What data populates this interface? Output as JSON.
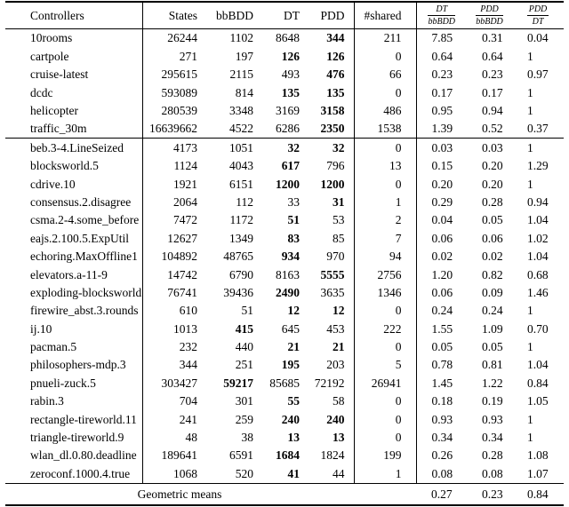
{
  "colors": {
    "text": "#000000",
    "background": "#ffffff",
    "rule": "#000000"
  },
  "table": {
    "columns": [
      "Controllers",
      "States",
      "bbBDD",
      "DT",
      "PDD",
      "#shared"
    ],
    "ratio_columns": [
      {
        "num": "DT",
        "den": "bbBDD"
      },
      {
        "num": "PDD",
        "den": "bbBDD"
      },
      {
        "num": "PDD",
        "den": "DT"
      }
    ],
    "groups": [
      {
        "rows": [
          {
            "controller": "10rooms",
            "states": "26244",
            "bbbdd": "1102",
            "dt": "8648",
            "pdd": "344",
            "shared": "211",
            "dt_bbbdd": "7.85",
            "pdd_bbbdd": "0.31",
            "pdd_dt": "0.04",
            "bold": [
              "pdd"
            ]
          },
          {
            "controller": "cartpole",
            "states": "271",
            "bbbdd": "197",
            "dt": "126",
            "pdd": "126",
            "shared": "0",
            "dt_bbbdd": "0.64",
            "pdd_bbbdd": "0.64",
            "pdd_dt": "1",
            "bold": [
              "dt",
              "pdd"
            ]
          },
          {
            "controller": "cruise-latest",
            "states": "295615",
            "bbbdd": "2115",
            "dt": "493",
            "pdd": "476",
            "shared": "66",
            "dt_bbbdd": "0.23",
            "pdd_bbbdd": "0.23",
            "pdd_dt": "0.97",
            "bold": [
              "pdd"
            ]
          },
          {
            "controller": "dcdc",
            "states": "593089",
            "bbbdd": "814",
            "dt": "135",
            "pdd": "135",
            "shared": "0",
            "dt_bbbdd": "0.17",
            "pdd_bbbdd": "0.17",
            "pdd_dt": "1",
            "bold": [
              "dt",
              "pdd"
            ]
          },
          {
            "controller": "helicopter",
            "states": "280539",
            "bbbdd": "3348",
            "dt": "3169",
            "pdd": "3158",
            "shared": "486",
            "dt_bbbdd": "0.95",
            "pdd_bbbdd": "0.94",
            "pdd_dt": "1",
            "bold": [
              "pdd"
            ]
          },
          {
            "controller": "traffic_30m",
            "states": "16639662",
            "bbbdd": "4522",
            "dt": "6286",
            "pdd": "2350",
            "shared": "1538",
            "dt_bbbdd": "1.39",
            "pdd_bbbdd": "0.52",
            "pdd_dt": "0.37",
            "bold": [
              "pdd"
            ]
          }
        ]
      },
      {
        "rows": [
          {
            "controller": "beb.3-4.LineSeized",
            "states": "4173",
            "bbbdd": "1051",
            "dt": "32",
            "pdd": "32",
            "shared": "0",
            "dt_bbbdd": "0.03",
            "pdd_bbbdd": "0.03",
            "pdd_dt": "1",
            "bold": [
              "dt",
              "pdd"
            ]
          },
          {
            "controller": "blocksworld.5",
            "states": "1124",
            "bbbdd": "4043",
            "dt": "617",
            "pdd": "796",
            "shared": "13",
            "dt_bbbdd": "0.15",
            "pdd_bbbdd": "0.20",
            "pdd_dt": "1.29",
            "bold": [
              "dt"
            ]
          },
          {
            "controller": "cdrive.10",
            "states": "1921",
            "bbbdd": "6151",
            "dt": "1200",
            "pdd": "1200",
            "shared": "0",
            "dt_bbbdd": "0.20",
            "pdd_bbbdd": "0.20",
            "pdd_dt": "1",
            "bold": [
              "dt",
              "pdd"
            ]
          },
          {
            "controller": "consensus.2.disagree",
            "states": "2064",
            "bbbdd": "112",
            "dt": "33",
            "pdd": "31",
            "shared": "1",
            "dt_bbbdd": "0.29",
            "pdd_bbbdd": "0.28",
            "pdd_dt": "0.94",
            "bold": [
              "pdd"
            ]
          },
          {
            "controller": "csma.2-4.some_before",
            "states": "7472",
            "bbbdd": "1172",
            "dt": "51",
            "pdd": "53",
            "shared": "2",
            "dt_bbbdd": "0.04",
            "pdd_bbbdd": "0.05",
            "pdd_dt": "1.04",
            "bold": [
              "dt"
            ]
          },
          {
            "controller": "eajs.2.100.5.ExpUtil",
            "states": "12627",
            "bbbdd": "1349",
            "dt": "83",
            "pdd": "85",
            "shared": "7",
            "dt_bbbdd": "0.06",
            "pdd_bbbdd": "0.06",
            "pdd_dt": "1.02",
            "bold": [
              "dt"
            ]
          },
          {
            "controller": "echoring.MaxOffline1",
            "states": "104892",
            "bbbdd": "48765",
            "dt": "934",
            "pdd": "970",
            "shared": "94",
            "dt_bbbdd": "0.02",
            "pdd_bbbdd": "0.02",
            "pdd_dt": "1.04",
            "bold": [
              "dt"
            ]
          },
          {
            "controller": "elevators.a-11-9",
            "states": "14742",
            "bbbdd": "6790",
            "dt": "8163",
            "pdd": "5555",
            "shared": "2756",
            "dt_bbbdd": "1.20",
            "pdd_bbbdd": "0.82",
            "pdd_dt": "0.68",
            "bold": [
              "pdd"
            ]
          },
          {
            "controller": "exploding-blocksworld.5",
            "states": "76741",
            "bbbdd": "39436",
            "dt": "2490",
            "pdd": "3635",
            "shared": "1346",
            "dt_bbbdd": "0.06",
            "pdd_bbbdd": "0.09",
            "pdd_dt": "1.46",
            "bold": [
              "dt"
            ]
          },
          {
            "controller": "firewire_abst.3.rounds",
            "states": "610",
            "bbbdd": "51",
            "dt": "12",
            "pdd": "12",
            "shared": "0",
            "dt_bbbdd": "0.24",
            "pdd_bbbdd": "0.24",
            "pdd_dt": "1",
            "bold": [
              "dt",
              "pdd"
            ]
          },
          {
            "controller": "ij.10",
            "states": "1013",
            "bbbdd": "415",
            "dt": "645",
            "pdd": "453",
            "shared": "222",
            "dt_bbbdd": "1.55",
            "pdd_bbbdd": "1.09",
            "pdd_dt": "0.70",
            "bold": [
              "bbbdd"
            ]
          },
          {
            "controller": "pacman.5",
            "states": "232",
            "bbbdd": "440",
            "dt": "21",
            "pdd": "21",
            "shared": "0",
            "dt_bbbdd": "0.05",
            "pdd_bbbdd": "0.05",
            "pdd_dt": "1",
            "bold": [
              "dt",
              "pdd"
            ]
          },
          {
            "controller": "philosophers-mdp.3",
            "states": "344",
            "bbbdd": "251",
            "dt": "195",
            "pdd": "203",
            "shared": "5",
            "dt_bbbdd": "0.78",
            "pdd_bbbdd": "0.81",
            "pdd_dt": "1.04",
            "bold": [
              "dt"
            ]
          },
          {
            "controller": "pnueli-zuck.5",
            "states": "303427",
            "bbbdd": "59217",
            "dt": "85685",
            "pdd": "72192",
            "shared": "26941",
            "dt_bbbdd": "1.45",
            "pdd_bbbdd": "1.22",
            "pdd_dt": "0.84",
            "bold": [
              "bbbdd"
            ]
          },
          {
            "controller": "rabin.3",
            "states": "704",
            "bbbdd": "301",
            "dt": "55",
            "pdd": "58",
            "shared": "0",
            "dt_bbbdd": "0.18",
            "pdd_bbbdd": "0.19",
            "pdd_dt": "1.05",
            "bold": [
              "dt"
            ]
          },
          {
            "controller": "rectangle-tireworld.11",
            "states": "241",
            "bbbdd": "259",
            "dt": "240",
            "pdd": "240",
            "shared": "0",
            "dt_bbbdd": "0.93",
            "pdd_bbbdd": "0.93",
            "pdd_dt": "1",
            "bold": [
              "dt",
              "pdd"
            ]
          },
          {
            "controller": "triangle-tireworld.9",
            "states": "48",
            "bbbdd": "38",
            "dt": "13",
            "pdd": "13",
            "shared": "0",
            "dt_bbbdd": "0.34",
            "pdd_bbbdd": "0.34",
            "pdd_dt": "1",
            "bold": [
              "dt",
              "pdd"
            ]
          },
          {
            "controller": "wlan_dl.0.80.deadline",
            "states": "189641",
            "bbbdd": "6591",
            "dt": "1684",
            "pdd": "1824",
            "shared": "199",
            "dt_bbbdd": "0.26",
            "pdd_bbbdd": "0.28",
            "pdd_dt": "1.08",
            "bold": [
              "dt"
            ]
          },
          {
            "controller": "zeroconf.1000.4.true",
            "states": "1068",
            "bbbdd": "520",
            "dt": "41",
            "pdd": "44",
            "shared": "1",
            "dt_bbbdd": "0.08",
            "pdd_bbbdd": "0.08",
            "pdd_dt": "1.07",
            "bold": [
              "dt"
            ]
          }
        ]
      }
    ],
    "footer": {
      "label": "Geometric means",
      "values": [
        "0.27",
        "0.23",
        "0.84"
      ]
    }
  }
}
